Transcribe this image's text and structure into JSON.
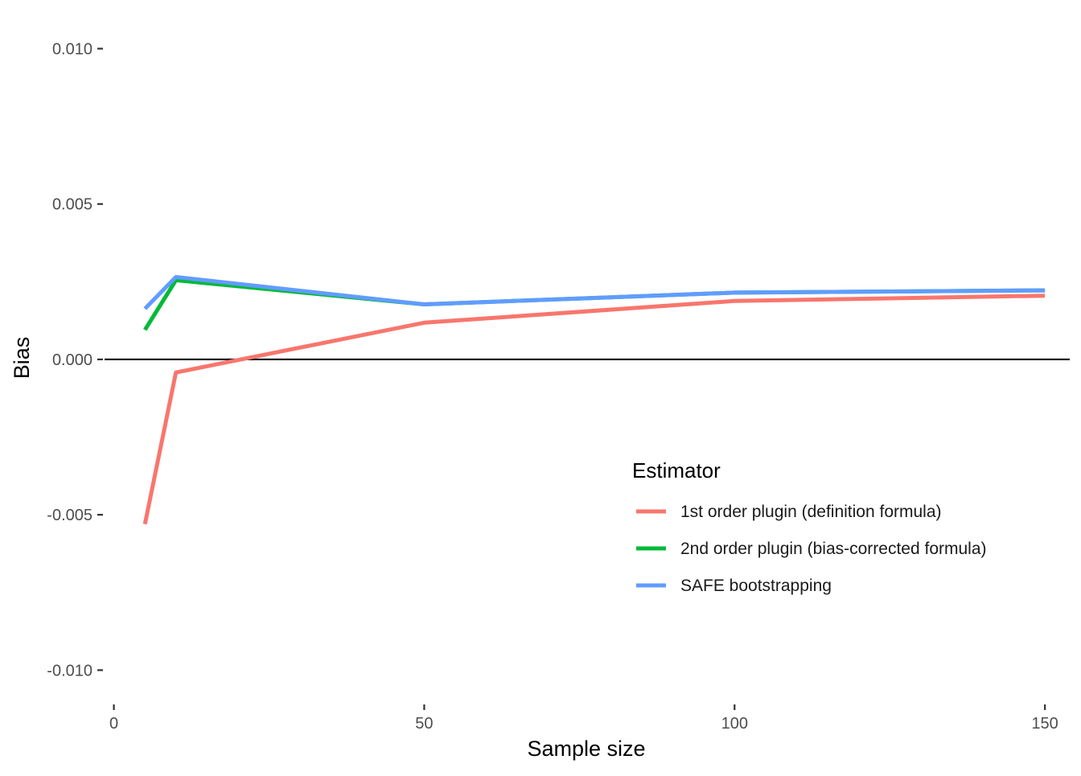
{
  "chart_data": {
    "type": "line",
    "title": "",
    "xlabel": "Sample size",
    "ylabel": "Bias",
    "xlim": [
      -1.5,
      154
    ],
    "ylim": [
      -0.011,
      0.0111
    ],
    "x_ticks": [
      0,
      50,
      100,
      150
    ],
    "x_tick_labels": [
      "0",
      "50",
      "100",
      "150"
    ],
    "y_ticks": [
      -0.01,
      -0.005,
      0.0,
      0.005,
      0.01
    ],
    "y_tick_labels": [
      "-0.010",
      "-0.005",
      "0.000",
      "0.005",
      "0.010"
    ],
    "grid": false,
    "reference_line": {
      "y": 0,
      "color": "#000000"
    },
    "legend": {
      "title": "Estimator",
      "position": "inside-bottom-right"
    },
    "series": [
      {
        "name": "1st order plugin (definition formula)",
        "color": "#F8766D",
        "x": [
          5,
          10,
          50,
          100,
          150
        ],
        "y": [
          -0.0053,
          -0.00042,
          0.00118,
          0.00188,
          0.00205
        ]
      },
      {
        "name": "2nd order plugin (bias-corrected formula)",
        "color": "#00BA38",
        "x": [
          5,
          10,
          50,
          100,
          150
        ],
        "y": [
          0.00095,
          0.00255,
          0.00177,
          0.00215,
          0.00222
        ]
      },
      {
        "name": "SAFE bootstrapping",
        "color": "#619CFF",
        "x": [
          5,
          10,
          50,
          100,
          150
        ],
        "y": [
          0.00163,
          0.00265,
          0.00177,
          0.00215,
          0.00222
        ]
      }
    ]
  }
}
